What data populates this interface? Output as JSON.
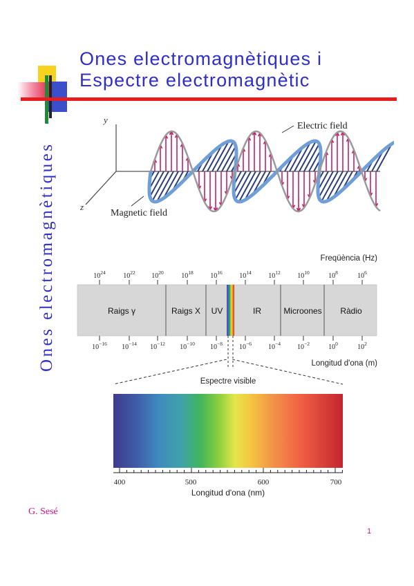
{
  "slide": {
    "title_line1": "Ones electromagnètiques i",
    "title_line2": "Espectre electromagnètic",
    "vertical_title": "Ones electromagnètiques",
    "author": "G. Sesé",
    "page_number": "1"
  },
  "wave_figure": {
    "axis_y": "y",
    "axis_z": "z",
    "electric_label": "Electric field",
    "magnetic_label": "Magnetic field"
  },
  "spectrum": {
    "frequency_label": "Freqüència (Hz)",
    "wavelength_label": "Longitud d'ona (m)",
    "freq_ticks": [
      {
        "base": "10",
        "exp": "24"
      },
      {
        "base": "10",
        "exp": "22"
      },
      {
        "base": "10",
        "exp": "20"
      },
      {
        "base": "10",
        "exp": "18"
      },
      {
        "base": "10",
        "exp": "16"
      },
      {
        "base": "10",
        "exp": "14"
      },
      {
        "base": "10",
        "exp": "12"
      },
      {
        "base": "10",
        "exp": "10"
      },
      {
        "base": "10",
        "exp": "8"
      },
      {
        "base": "10",
        "exp": "6"
      }
    ],
    "wavelength_ticks": [
      {
        "base": "10",
        "exp": "−16"
      },
      {
        "base": "10",
        "exp": "−14"
      },
      {
        "base": "10",
        "exp": "−12"
      },
      {
        "base": "10",
        "exp": "−10"
      },
      {
        "base": "10",
        "exp": "−8"
      },
      {
        "base": "10",
        "exp": "−6"
      },
      {
        "base": "10",
        "exp": "−4"
      },
      {
        "base": "10",
        "exp": "−2"
      },
      {
        "base": "10",
        "exp": "0"
      },
      {
        "base": "10",
        "exp": "2"
      }
    ],
    "bands": [
      "Raigs γ",
      "Raigs X",
      "UV",
      "IR",
      "Microones",
      "Ràdio"
    ],
    "visible_label": "Espectre visible",
    "visible_axis_label": "Longitud d'ona (nm)",
    "visible_ticks": [
      "400",
      "500",
      "600",
      "700"
    ]
  },
  "colors": {
    "title": "#2f2fc8",
    "accent_line": "#e81c1c",
    "author": "#c8148c",
    "electric_arrows": "#c21d6c",
    "magnetic_arrows": "#2a3e7a",
    "magnetic_wave": "#6f9fd6",
    "band_fill": "#d7d7d7"
  }
}
